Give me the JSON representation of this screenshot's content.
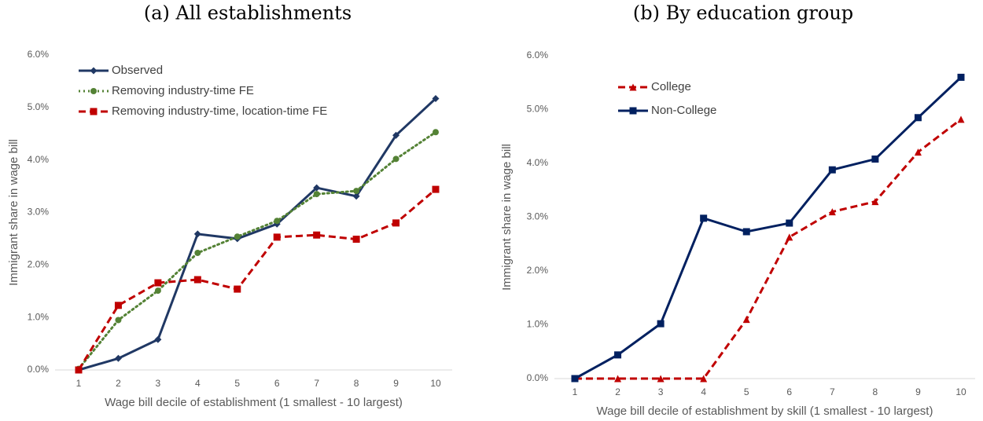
{
  "chart_data": [
    {
      "type": "line",
      "title": "(a) All establishments",
      "y_label": "Immigrant share in wage bill",
      "x_label": "Wage bill decile of establishment (1 smallest - 10 largest)",
      "categories": [
        "1",
        "2",
        "3",
        "4",
        "5",
        "6",
        "7",
        "8",
        "9",
        "10"
      ],
      "ylim": [
        0,
        6
      ],
      "yticks": [
        {
          "value": 0,
          "label": "0.0%"
        },
        {
          "value": 1,
          "label": "1.0%"
        },
        {
          "value": 2,
          "label": "2.0%"
        },
        {
          "value": 3,
          "label": "3.0%"
        },
        {
          "value": 4,
          "label": "4.0%"
        },
        {
          "value": 5,
          "label": "5.0%"
        },
        {
          "value": 6,
          "label": "6.0%"
        }
      ],
      "legend": "upper-left",
      "series": [
        {
          "name": "Observed",
          "color": "#203864",
          "style": "solid",
          "marker": "diamond",
          "values": [
            0,
            0.22,
            0.58,
            2.59,
            2.5,
            2.78,
            3.47,
            3.31,
            4.47,
            5.17
          ]
        },
        {
          "name": "Removing industry-time FE",
          "color": "#548235",
          "style": "dotted",
          "marker": "circle",
          "values": [
            0.02,
            0.95,
            1.51,
            2.23,
            2.54,
            2.84,
            3.35,
            3.41,
            4.02,
            4.53
          ]
        },
        {
          "name": "Removing industry-time, location-time FE",
          "color": "#c00000",
          "style": "dashed",
          "marker": "square",
          "values": [
            0,
            1.23,
            1.66,
            1.72,
            1.54,
            2.53,
            2.57,
            2.49,
            2.8,
            3.44
          ]
        }
      ]
    },
    {
      "type": "line",
      "title": "(b) By education group",
      "y_label": "Immigrant share in wage bill",
      "x_label": "Wage bill decile of establishment by skill (1 smallest - 10 largest)",
      "categories": [
        "1",
        "2",
        "3",
        "4",
        "5",
        "6",
        "7",
        "8",
        "9",
        "10"
      ],
      "ylim": [
        0,
        6
      ],
      "yticks": [
        {
          "value": 0,
          "label": "0.0%"
        },
        {
          "value": 1,
          "label": "1.0%"
        },
        {
          "value": 2,
          "label": "2.0%"
        },
        {
          "value": 3,
          "label": "3.0%"
        },
        {
          "value": 4,
          "label": "4.0%"
        },
        {
          "value": 5,
          "label": "5.0%"
        },
        {
          "value": 6,
          "label": "6.0%"
        }
      ],
      "legend": "upper-left",
      "series": [
        {
          "name": "College",
          "color": "#c00000",
          "style": "dashed",
          "marker": "triangle",
          "values": [
            0,
            0,
            0,
            0,
            1.1,
            2.63,
            3.1,
            3.29,
            4.21,
            4.82
          ]
        },
        {
          "name": "Non-College",
          "color": "#002060",
          "style": "solid",
          "marker": "square",
          "values": [
            0,
            0.44,
            1.02,
            2.98,
            2.73,
            2.89,
            3.88,
            4.08,
            4.85,
            5.6
          ]
        }
      ]
    }
  ]
}
